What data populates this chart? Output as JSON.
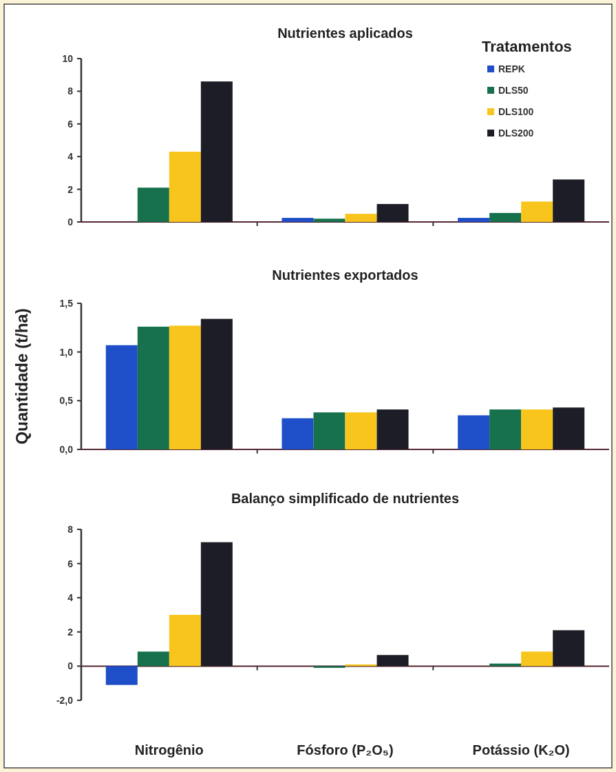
{
  "chart_data": [
    {
      "type": "bar",
      "title": "Nutrientes aplicados",
      "legend_title": "Tratamentos",
      "legend": "top right",
      "categories": [
        null,
        null,
        null
      ],
      "ylim": [
        0,
        10
      ],
      "yticks": [
        0,
        2,
        4,
        6,
        8,
        10
      ],
      "series": [
        {
          "name": "REPK",
          "color": "#1f4fc8",
          "values": [
            0,
            0.25,
            0.25
          ]
        },
        {
          "name": "DLS50",
          "color": "#16714c",
          "values": [
            2.1,
            0.2,
            0.55
          ]
        },
        {
          "name": "DLS100",
          "color": "#f7c51c",
          "values": [
            4.3,
            0.5,
            1.25
          ]
        },
        {
          "name": "DLS200",
          "color": "#1c1d26",
          "values": [
            8.6,
            1.1,
            2.6
          ]
        }
      ]
    },
    {
      "type": "bar",
      "title": "Nutrientes exportados",
      "ylabel": "Quantidade (t/ha)",
      "categories": [
        null,
        null,
        null
      ],
      "ylim": [
        0,
        1.5
      ],
      "yticks": [
        {
          "value": 0,
          "label": "0,0"
        },
        {
          "value": 0.5,
          "label": "0,5"
        },
        {
          "value": 1,
          "label": "1,0"
        },
        {
          "value": 1.5,
          "label": "1,5"
        }
      ],
      "series": [
        {
          "color": "#1f4fc8",
          "values": [
            1.07,
            0.32,
            0.35
          ]
        },
        {
          "color": "#16714c",
          "values": [
            1.26,
            0.38,
            0.41
          ]
        },
        {
          "color": "#f7c51c",
          "values": [
            1.27,
            0.38,
            0.41
          ]
        },
        {
          "color": "#1c1d26",
          "values": [
            1.34,
            0.41,
            0.43
          ]
        }
      ]
    },
    {
      "type": "bar",
      "title": "Balanço simplificado de nutrientes",
      "categories": [
        "Nitrogênio",
        "Fósforo (P₂O₅)",
        "Potássio (K₂O)"
      ],
      "ylim": [
        -2,
        8
      ],
      "yticks": [
        {
          "value": -2,
          "label": "-2,0"
        },
        0,
        2,
        4,
        6,
        8
      ],
      "series": [
        {
          "color": "#1f4fc8",
          "values": [
            -1.1,
            0,
            0
          ]
        },
        {
          "color": "#16714c",
          "values": [
            0.85,
            -0.1,
            0.15
          ]
        },
        {
          "color": "#f7c51c",
          "values": [
            3.0,
            0.1,
            0.85
          ]
        },
        {
          "color": "#1c1d26",
          "values": [
            7.25,
            0.65,
            2.1
          ]
        }
      ]
    }
  ]
}
